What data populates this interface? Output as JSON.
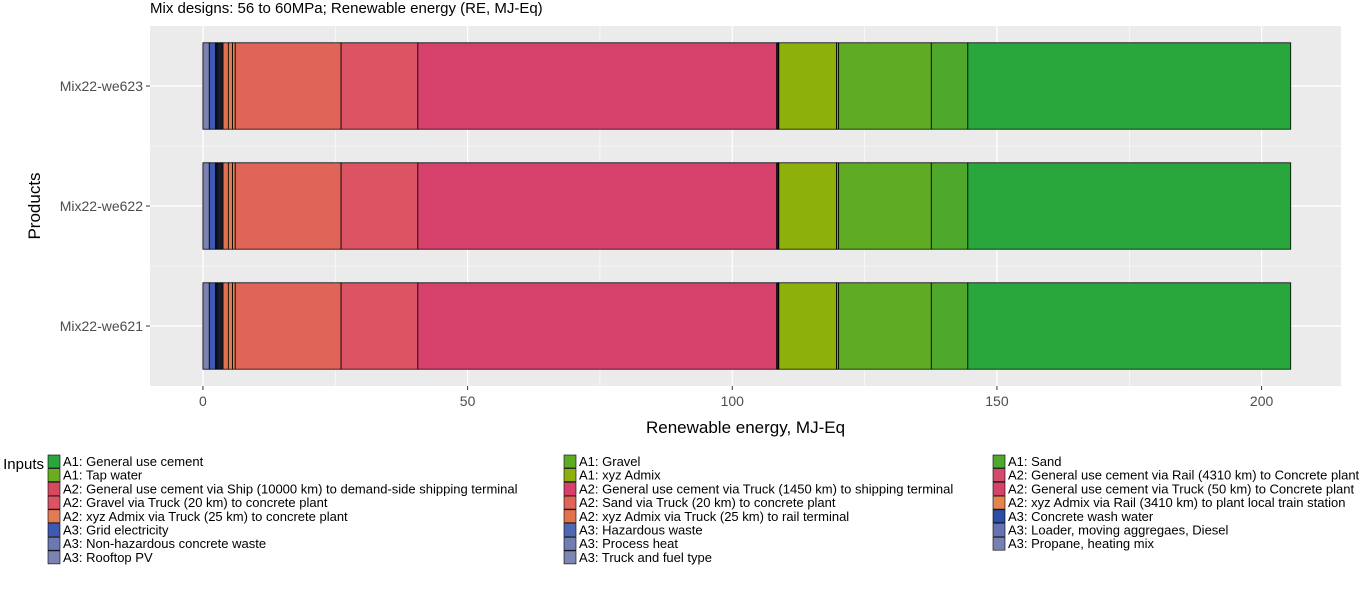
{
  "chart_data": {
    "type": "bar",
    "orientation": "horizontal",
    "stacked": true,
    "subtitle": "Mix designs: 56 to 60MPa; Renewable energy (RE, MJ-Eq)",
    "xlabel": "Renewable energy, MJ-Eq",
    "ylabel": "Products",
    "xlim": [
      -10,
      215
    ],
    "x_ticks": [
      0,
      50,
      100,
      150,
      200
    ],
    "grid": true,
    "legend_title": "Inputs",
    "legend_position": "bottom",
    "categories": [
      "Mix22-we623",
      "Mix22-we622",
      "Mix22-we621"
    ],
    "series": [
      {
        "name": "A3: Rooftop PV",
        "color": "#7c83b3",
        "values": [
          1.2,
          1.2,
          1.2
        ]
      },
      {
        "name": "A3: Grid electricity",
        "color": "#3e59b3",
        "values": [
          1.2,
          1.2,
          1.2
        ]
      },
      {
        "name": "A3: Concrete wash water",
        "color": "#2b4ea6",
        "values": [
          0.2,
          0.2,
          0.2
        ]
      },
      {
        "name": "A3: Hazardous waste",
        "color": "#5068b3",
        "values": [
          0.2,
          0.2,
          0.2
        ]
      },
      {
        "name": "A3: Loader, moving aggregaes, Diesel",
        "color": "#6673b3",
        "values": [
          0.2,
          0.2,
          0.2
        ]
      },
      {
        "name": "A3: Non-hazardous concrete waste",
        "color": "#6a78b3",
        "values": [
          0.2,
          0.2,
          0.2
        ]
      },
      {
        "name": "A3: Process heat",
        "color": "#727eb3",
        "values": [
          0.2,
          0.2,
          0.2
        ]
      },
      {
        "name": "A3: Propane, heating mix",
        "color": "#7880b3",
        "values": [
          0.2,
          0.2,
          0.2
        ]
      },
      {
        "name": "A3: Truck and fuel type",
        "color": "#7e86b3",
        "values": [
          0.2,
          0.2,
          0.2
        ]
      },
      {
        "name": "A2: xyz Admix via Truck (25 km) to rail terminal",
        "color": "#e0734e",
        "values": [
          1.0,
          1.0,
          1.0
        ]
      },
      {
        "name": "A2: xyz Admix via Truck (25 km) to concrete plant",
        "color": "#e07b55",
        "values": [
          0.8,
          0.8,
          0.8
        ]
      },
      {
        "name": "A2: xyz Admix via Rail (3410 km) to plant local train station",
        "color": "#e2854f",
        "values": [
          0.5,
          0.5,
          0.5
        ]
      },
      {
        "name": "A2: Sand via Truck (20 km) to concrete plant",
        "color": "#e06458",
        "values": [
          20.0,
          20.0,
          20.0
        ]
      },
      {
        "name": "A2: Gravel via Truck (20 km) to concrete plant",
        "color": "#dc5364",
        "values": [
          14.5,
          14.5,
          14.5
        ]
      },
      {
        "name": "A2: General use cement via Truck (1450 km) to shipping terminal",
        "color": "#d6416b",
        "values": [
          67.8,
          67.8,
          67.8
        ]
      },
      {
        "name": "A2: General use cement via Ship (10000 km) to demand-side shipping terminal",
        "color": "#d8485e",
        "values": [
          0.2,
          0.2,
          0.2
        ]
      },
      {
        "name": "A2: General use cement via Rail (4310 km) to Concrete plant",
        "color": "#d44a6c",
        "values": [
          0.1,
          0.1,
          0.1
        ]
      },
      {
        "name": "A2: General use cement via Truck (50 km) to Concrete plant",
        "color": "#d6436a",
        "values": [
          0.1,
          0.1,
          0.1
        ]
      },
      {
        "name": "A1: xyz Admix",
        "color": "#8db10a",
        "values": [
          10.9,
          10.9,
          10.9
        ]
      },
      {
        "name": "A1: Tap water",
        "color": "#6aad1e",
        "values": [
          0.4,
          0.4,
          0.4
        ]
      },
      {
        "name": "A1: Gravel",
        "color": "#5fac24",
        "values": [
          17.5,
          17.5,
          17.5
        ]
      },
      {
        "name": "A1: Sand",
        "color": "#4ea82b",
        "values": [
          6.9,
          6.9,
          6.9
        ]
      },
      {
        "name": "A1: General use cement",
        "color": "#29a73d",
        "values": [
          61.0,
          61.0,
          61.0
        ]
      }
    ],
    "legend": [
      [
        "A1: General use cement",
        "A1: Gravel",
        "A1: Sand"
      ],
      [
        "A1: Tap water",
        "A1: xyz Admix",
        "A2: General use cement via Rail (4310 km) to Concrete plant"
      ],
      [
        "A2: General use cement via Ship (10000 km) to demand-side shipping terminal",
        "A2: General use cement via Truck (1450 km) to shipping terminal",
        "A2: General use cement via Truck (50 km) to Concrete plant"
      ],
      [
        "A2: Gravel via Truck (20 km) to concrete plant",
        "A2: Sand via Truck (20 km) to concrete plant",
        "A2: xyz Admix via Rail (3410 km) to plant local train station"
      ],
      [
        "A2: xyz Admix via Truck (25 km) to concrete plant",
        "A2: xyz Admix via Truck (25 km) to rail terminal",
        "A3: Concrete wash water"
      ],
      [
        "A3: Grid electricity",
        "A3: Hazardous waste",
        "A3: Loader, moving aggregaes, Diesel"
      ],
      [
        "A3: Non-hazardous concrete waste",
        "A3: Process heat",
        "A3: Propane, heating mix"
      ],
      [
        "A3: Rooftop PV",
        "A3: Truck and fuel type"
      ]
    ]
  }
}
